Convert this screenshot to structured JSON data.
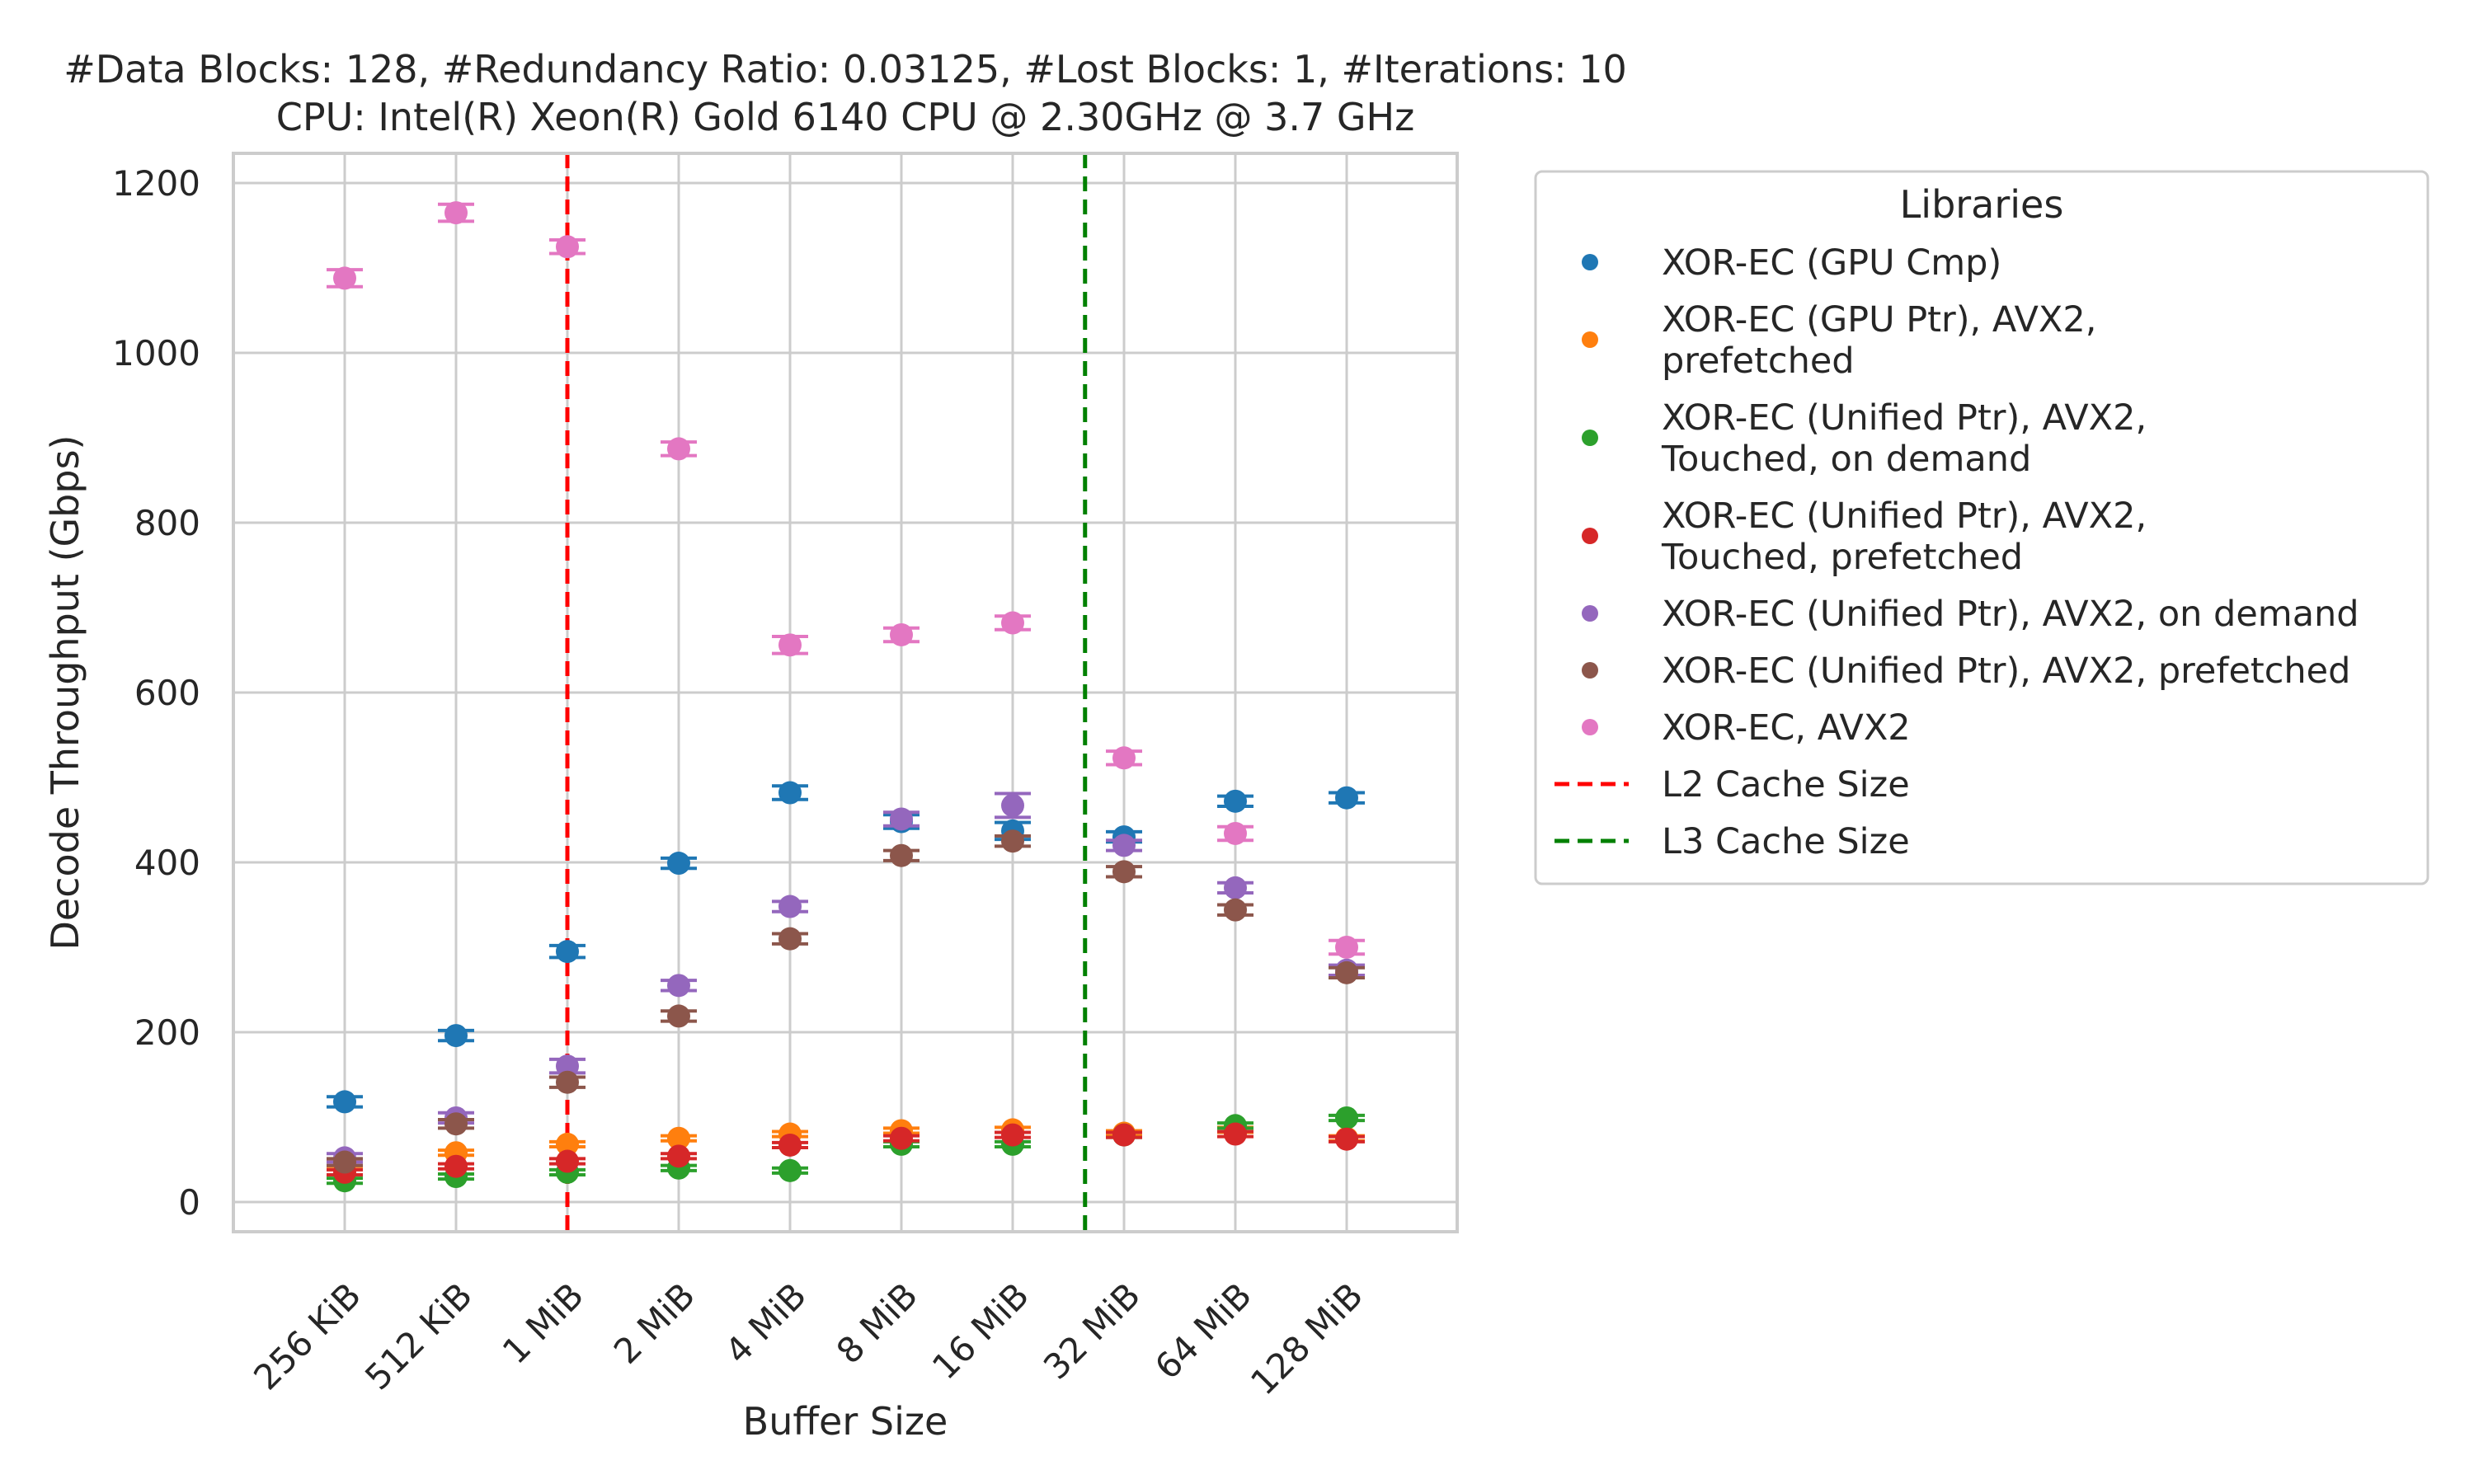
{
  "chart_data": {
    "type": "scatter",
    "title_lines": [
      "#Data Blocks: 128, #Redundancy Ratio: 0.03125, #Lost Blocks: 1, #Iterations: 10",
      "CPU: Intel(R) Xeon(R) Gold 6140 CPU @ 2.30GHz @ 3.7 GHz"
    ],
    "xlabel": "Buffer Size",
    "ylabel": "Decode Throughput (Gbps)",
    "categories": [
      "256 KiB",
      "512 KiB",
      "1 MiB",
      "2 MiB",
      "4 MiB",
      "8 MiB",
      "16 MiB",
      "32 MiB",
      "64 MiB",
      "128 MiB"
    ],
    "ylim": [
      -35,
      1235
    ],
    "yticks": [
      0,
      200,
      400,
      600,
      800,
      1000,
      1200
    ],
    "grid": true,
    "legend_title": "Libraries",
    "legend_position": "outside-right",
    "series": [
      {
        "name": "XOR-EC (GPU Cmp)",
        "color": "#1f77b4",
        "values": [
          118,
          196,
          295,
          399,
          482,
          448,
          437,
          430,
          472,
          476
        ],
        "err": [
          6,
          6,
          7,
          6,
          8,
          8,
          10,
          6,
          6,
          6
        ]
      },
      {
        "name": "XOR-EC (GPU Ptr), AVX2,\nprefetched",
        "color": "#ff7f0e",
        "values": [
          45,
          58,
          68,
          75,
          80,
          84,
          85,
          81,
          85,
          75
        ],
        "err": [
          3,
          3,
          3,
          3,
          3,
          3,
          3,
          3,
          3,
          3
        ]
      },
      {
        "name": "XOR-EC (Unified Ptr), AVX2,\nTouched, on demand",
        "color": "#2ca02c",
        "values": [
          25,
          30,
          35,
          40,
          37,
          68,
          68,
          79,
          90,
          99
        ],
        "err": [
          3,
          3,
          3,
          3,
          3,
          3,
          3,
          3,
          3,
          3
        ]
      },
      {
        "name": "XOR-EC (Unified Ptr), AVX2,\nTouched, prefetched",
        "color": "#d62728",
        "values": [
          35,
          42,
          48,
          54,
          67,
          75,
          79,
          79,
          80,
          74
        ],
        "err": [
          3,
          3,
          3,
          3,
          3,
          3,
          3,
          3,
          3,
          3
        ]
      },
      {
        "name": "XOR-EC (Unified Ptr), AVX2, on demand",
        "color": "#9467bd",
        "values": [
          52,
          99,
          160,
          255,
          348,
          451,
          467,
          420,
          370,
          273
        ],
        "err": [
          5,
          6,
          8,
          6,
          6,
          8,
          14,
          6,
          6,
          6
        ]
      },
      {
        "name": "XOR-EC (Unified Ptr), AVX2, prefetched",
        "color": "#8c564b",
        "values": [
          47,
          92,
          141,
          219,
          310,
          408,
          425,
          389,
          344,
          270
        ],
        "err": [
          4,
          5,
          6,
          6,
          6,
          6,
          6,
          6,
          6,
          6
        ]
      },
      {
        "name": "XOR-EC, AVX2",
        "color": "#e377c2",
        "values": [
          1088,
          1165,
          1125,
          887,
          656,
          668,
          682,
          523,
          434,
          300
        ],
        "err": [
          10,
          10,
          8,
          8,
          10,
          8,
          8,
          8,
          8,
          8
        ]
      }
    ],
    "vlines": [
      {
        "name": "L2 Cache Size",
        "color": "#ff0000",
        "position_category": "1 MiB",
        "offset": 0.0,
        "dash": "dashed"
      },
      {
        "name": "L3 Cache Size",
        "color": "#008000",
        "position_category": "32 MiB",
        "offset": -0.35,
        "dash": "dashed"
      }
    ]
  }
}
